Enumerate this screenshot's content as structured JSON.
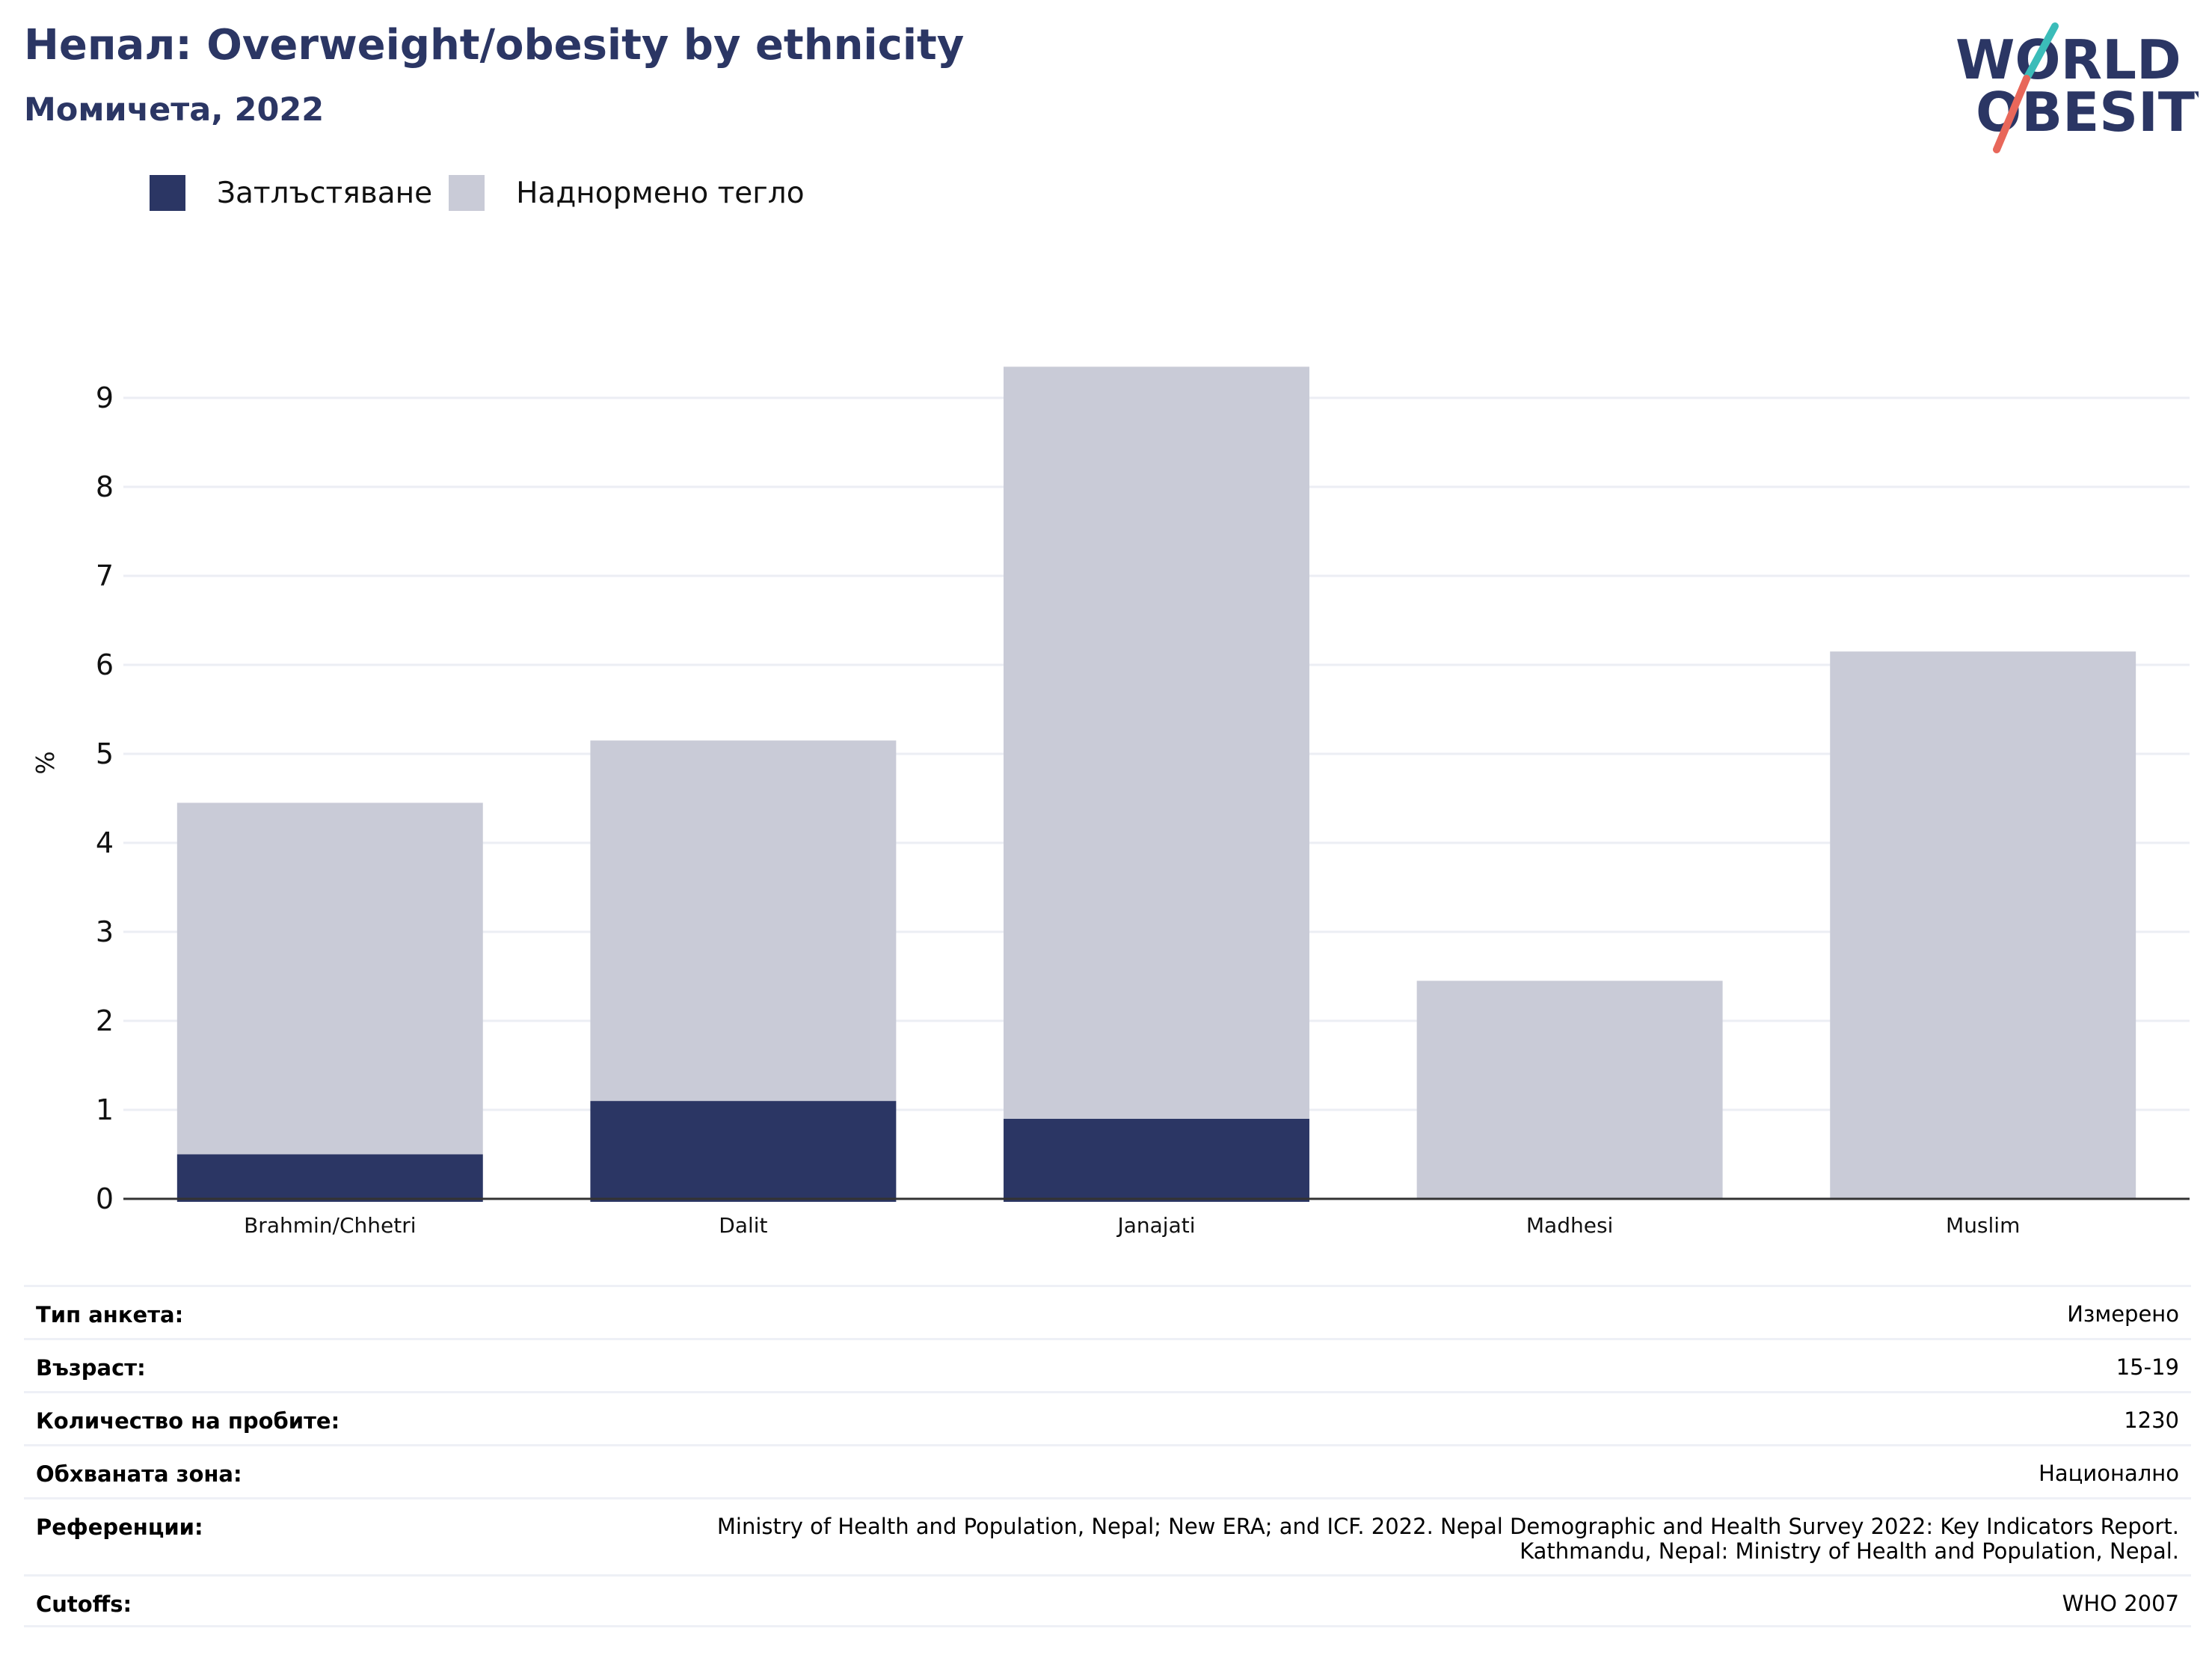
{
  "header": {
    "title": "Непал: Overweight/obesity by ethnicity",
    "subtitle": "Момичета, 2022"
  },
  "logo": {
    "line1": "WORLD",
    "line2": "OBESITY",
    "colors": {
      "text": "#2b3664",
      "slash_top": "#3bbcb9",
      "slash_bottom": "#e8675a"
    }
  },
  "colors": {
    "obesity": "#2b3664",
    "overweight": "#c9cbd7",
    "grid": "#eceef4",
    "axis": "#333333"
  },
  "chart_data": {
    "type": "bar",
    "stacked": true,
    "title": "Непал: Overweight/obesity by ethnicity",
    "subtitle": "Момичета, 2022",
    "xlabel": "",
    "ylabel": "%",
    "ylim": [
      0,
      9.5
    ],
    "yticks": [
      "0",
      "1",
      "2",
      "3",
      "4",
      "5",
      "6",
      "7",
      "8",
      "9"
    ],
    "grid": true,
    "legend_position": "top-left",
    "categories": [
      "Brahmin/Chhetri",
      "Dalit",
      "Janajati",
      "Madhesi",
      "Muslim"
    ],
    "series": [
      {
        "name": "Затлъстяване",
        "color": "#2b3664",
        "values": [
          0.5,
          1.1,
          0.9,
          0,
          0
        ]
      },
      {
        "name": "Наднормено тегло",
        "color": "#c9cbd7",
        "values": [
          3.95,
          4.05,
          8.45,
          2.45,
          6.15
        ]
      }
    ]
  },
  "meta": {
    "survey_type": {
      "label": "Тип анкета:",
      "value": "Измерено"
    },
    "age": {
      "label": "Възраст:",
      "value": "15-19"
    },
    "sample_size": {
      "label": "Количество на пробите:",
      "value": "1230"
    },
    "coverage": {
      "label": "Обхваната зона:",
      "value": "Национално"
    },
    "references": {
      "label": "Референции:",
      "value_line1": "Ministry of Health and Population, Nepal; New ERA; and ICF. 2022. Nepal Demographic and Health Survey 2022: Key Indicators Report.",
      "value_line2": "Kathmandu, Nepal: Ministry of Health and Population, Nepal."
    },
    "cutoffs": {
      "label": "Cutoffs:",
      "value": "WHO 2007"
    }
  }
}
